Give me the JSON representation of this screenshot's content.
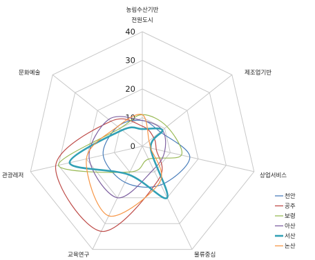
{
  "chart_data": {
    "type": "radar",
    "title": "",
    "axes": [
      "농림수산기반\n전원도시",
      "제조업기반",
      "상업서비스",
      "물류중심",
      "교육연구",
      "관광레저",
      "문화예술"
    ],
    "rlim": [
      0,
      40
    ],
    "ticks": [
      0,
      10,
      20,
      30,
      40
    ],
    "grid": true,
    "legend_position": "bottom-right",
    "series": [
      {
        "name": "천안",
        "color": "#4a7ebb",
        "values": [
          9,
          8,
          17,
          15,
          14,
          14,
          11
        ]
      },
      {
        "name": "공주",
        "color": "#be4b48",
        "values": [
          7,
          5,
          5,
          13,
          33,
          31,
          14
        ]
      },
      {
        "name": "보령",
        "color": "#98b954",
        "values": [
          11,
          11,
          14,
          5,
          10,
          30,
          10
        ]
      },
      {
        "name": "아산",
        "color": "#7d60a0",
        "values": [
          9,
          9,
          8,
          9,
          20,
          19,
          15
        ]
      },
      {
        "name": "서산",
        "color": "#31a0b5",
        "values": [
          6,
          9,
          3,
          20,
          11,
          26,
          9
        ]
      },
      {
        "name": "논산",
        "color": "#f79646",
        "values": [
          11,
          3,
          3,
          14,
          27,
          20,
          11
        ]
      }
    ]
  }
}
